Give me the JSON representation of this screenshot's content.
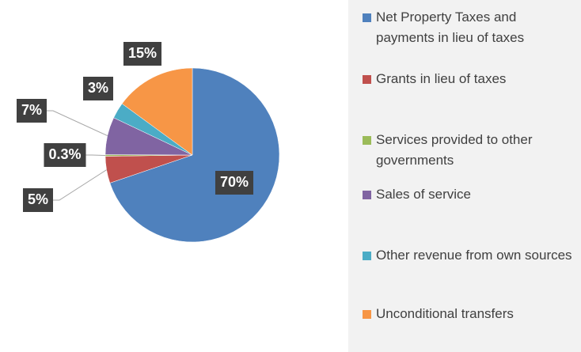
{
  "chart_data": {
    "type": "pie",
    "categories": [
      "Net Property Taxes and payments in lieu of taxes",
      "Grants in lieu of taxes",
      "Services provided to other governments",
      "Sales of service",
      "Other revenue from own sources",
      "Unconditional transfers"
    ],
    "values": [
      70,
      5,
      0.3,
      7,
      3,
      15
    ],
    "value_labels": [
      "70%",
      "5%",
      "0.3%",
      "7%",
      "3%",
      "15%"
    ],
    "colors": [
      "#4f81bd",
      "#c0504d",
      "#9bbb59",
      "#8064a2",
      "#4bacc6",
      "#f79646"
    ],
    "legend": "right"
  }
}
